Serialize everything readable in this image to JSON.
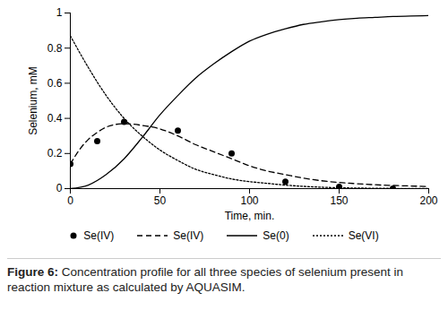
{
  "chart_data": {
    "type": "line",
    "caption": "Figure 6: Concentration profile for all three species of selenium present in reaction mixture as calculated by AQUASIM.",
    "x_label": "Time, min.",
    "y_label": "Selenium, mM",
    "xlim": [
      0,
      200
    ],
    "xticks": [
      0,
      50,
      100,
      150,
      200
    ],
    "ylim": [
      0,
      1
    ],
    "yticks": [
      0,
      0.2,
      0.4,
      0.6,
      0.8,
      1
    ],
    "grid": false,
    "legend": "bottom",
    "series": [
      {
        "name": "Se(IV)",
        "type": "scatter",
        "marker": "circle",
        "color": "#000000",
        "x": [
          0,
          15,
          30,
          60,
          90,
          120,
          150,
          180
        ],
        "values": [
          0.14,
          0.27,
          0.38,
          0.33,
          0.2,
          0.04,
          0.01,
          0.0
        ]
      },
      {
        "name": "Se(IV)",
        "type": "line",
        "line_style": "dashed",
        "color": "#000000",
        "x": [
          0,
          5,
          10,
          15,
          20,
          25,
          30,
          40,
          50,
          60,
          70,
          80,
          90,
          100,
          110,
          120,
          130,
          140,
          150,
          160,
          170,
          180,
          190,
          200
        ],
        "values": [
          0.14,
          0.22,
          0.28,
          0.32,
          0.35,
          0.365,
          0.37,
          0.36,
          0.34,
          0.3,
          0.25,
          0.21,
          0.17,
          0.13,
          0.1,
          0.08,
          0.06,
          0.045,
          0.035,
          0.028,
          0.022,
          0.018,
          0.015,
          0.012
        ]
      },
      {
        "name": "Se(0)",
        "type": "line",
        "line_style": "solid",
        "color": "#000000",
        "x": [
          0,
          10,
          20,
          30,
          40,
          50,
          60,
          70,
          80,
          90,
          100,
          110,
          120,
          130,
          140,
          150,
          160,
          170,
          180,
          190,
          200
        ],
        "values": [
          0,
          0.02,
          0.08,
          0.17,
          0.29,
          0.42,
          0.53,
          0.63,
          0.71,
          0.78,
          0.84,
          0.88,
          0.91,
          0.935,
          0.95,
          0.962,
          0.97,
          0.975,
          0.98,
          0.983,
          0.985
        ]
      },
      {
        "name": "Se(VI)",
        "type": "line",
        "line_style": "dotted",
        "color": "#000000",
        "x": [
          0,
          10,
          20,
          30,
          40,
          50,
          60,
          70,
          80,
          90,
          100,
          110,
          120,
          130,
          140,
          150,
          160,
          170,
          180,
          190,
          200
        ],
        "values": [
          0.87,
          0.69,
          0.53,
          0.4,
          0.3,
          0.22,
          0.16,
          0.11,
          0.08,
          0.055,
          0.04,
          0.03,
          0.02,
          0.013,
          0.008,
          0.005,
          0.003,
          0.002,
          0.001,
          0,
          0
        ]
      }
    ]
  }
}
